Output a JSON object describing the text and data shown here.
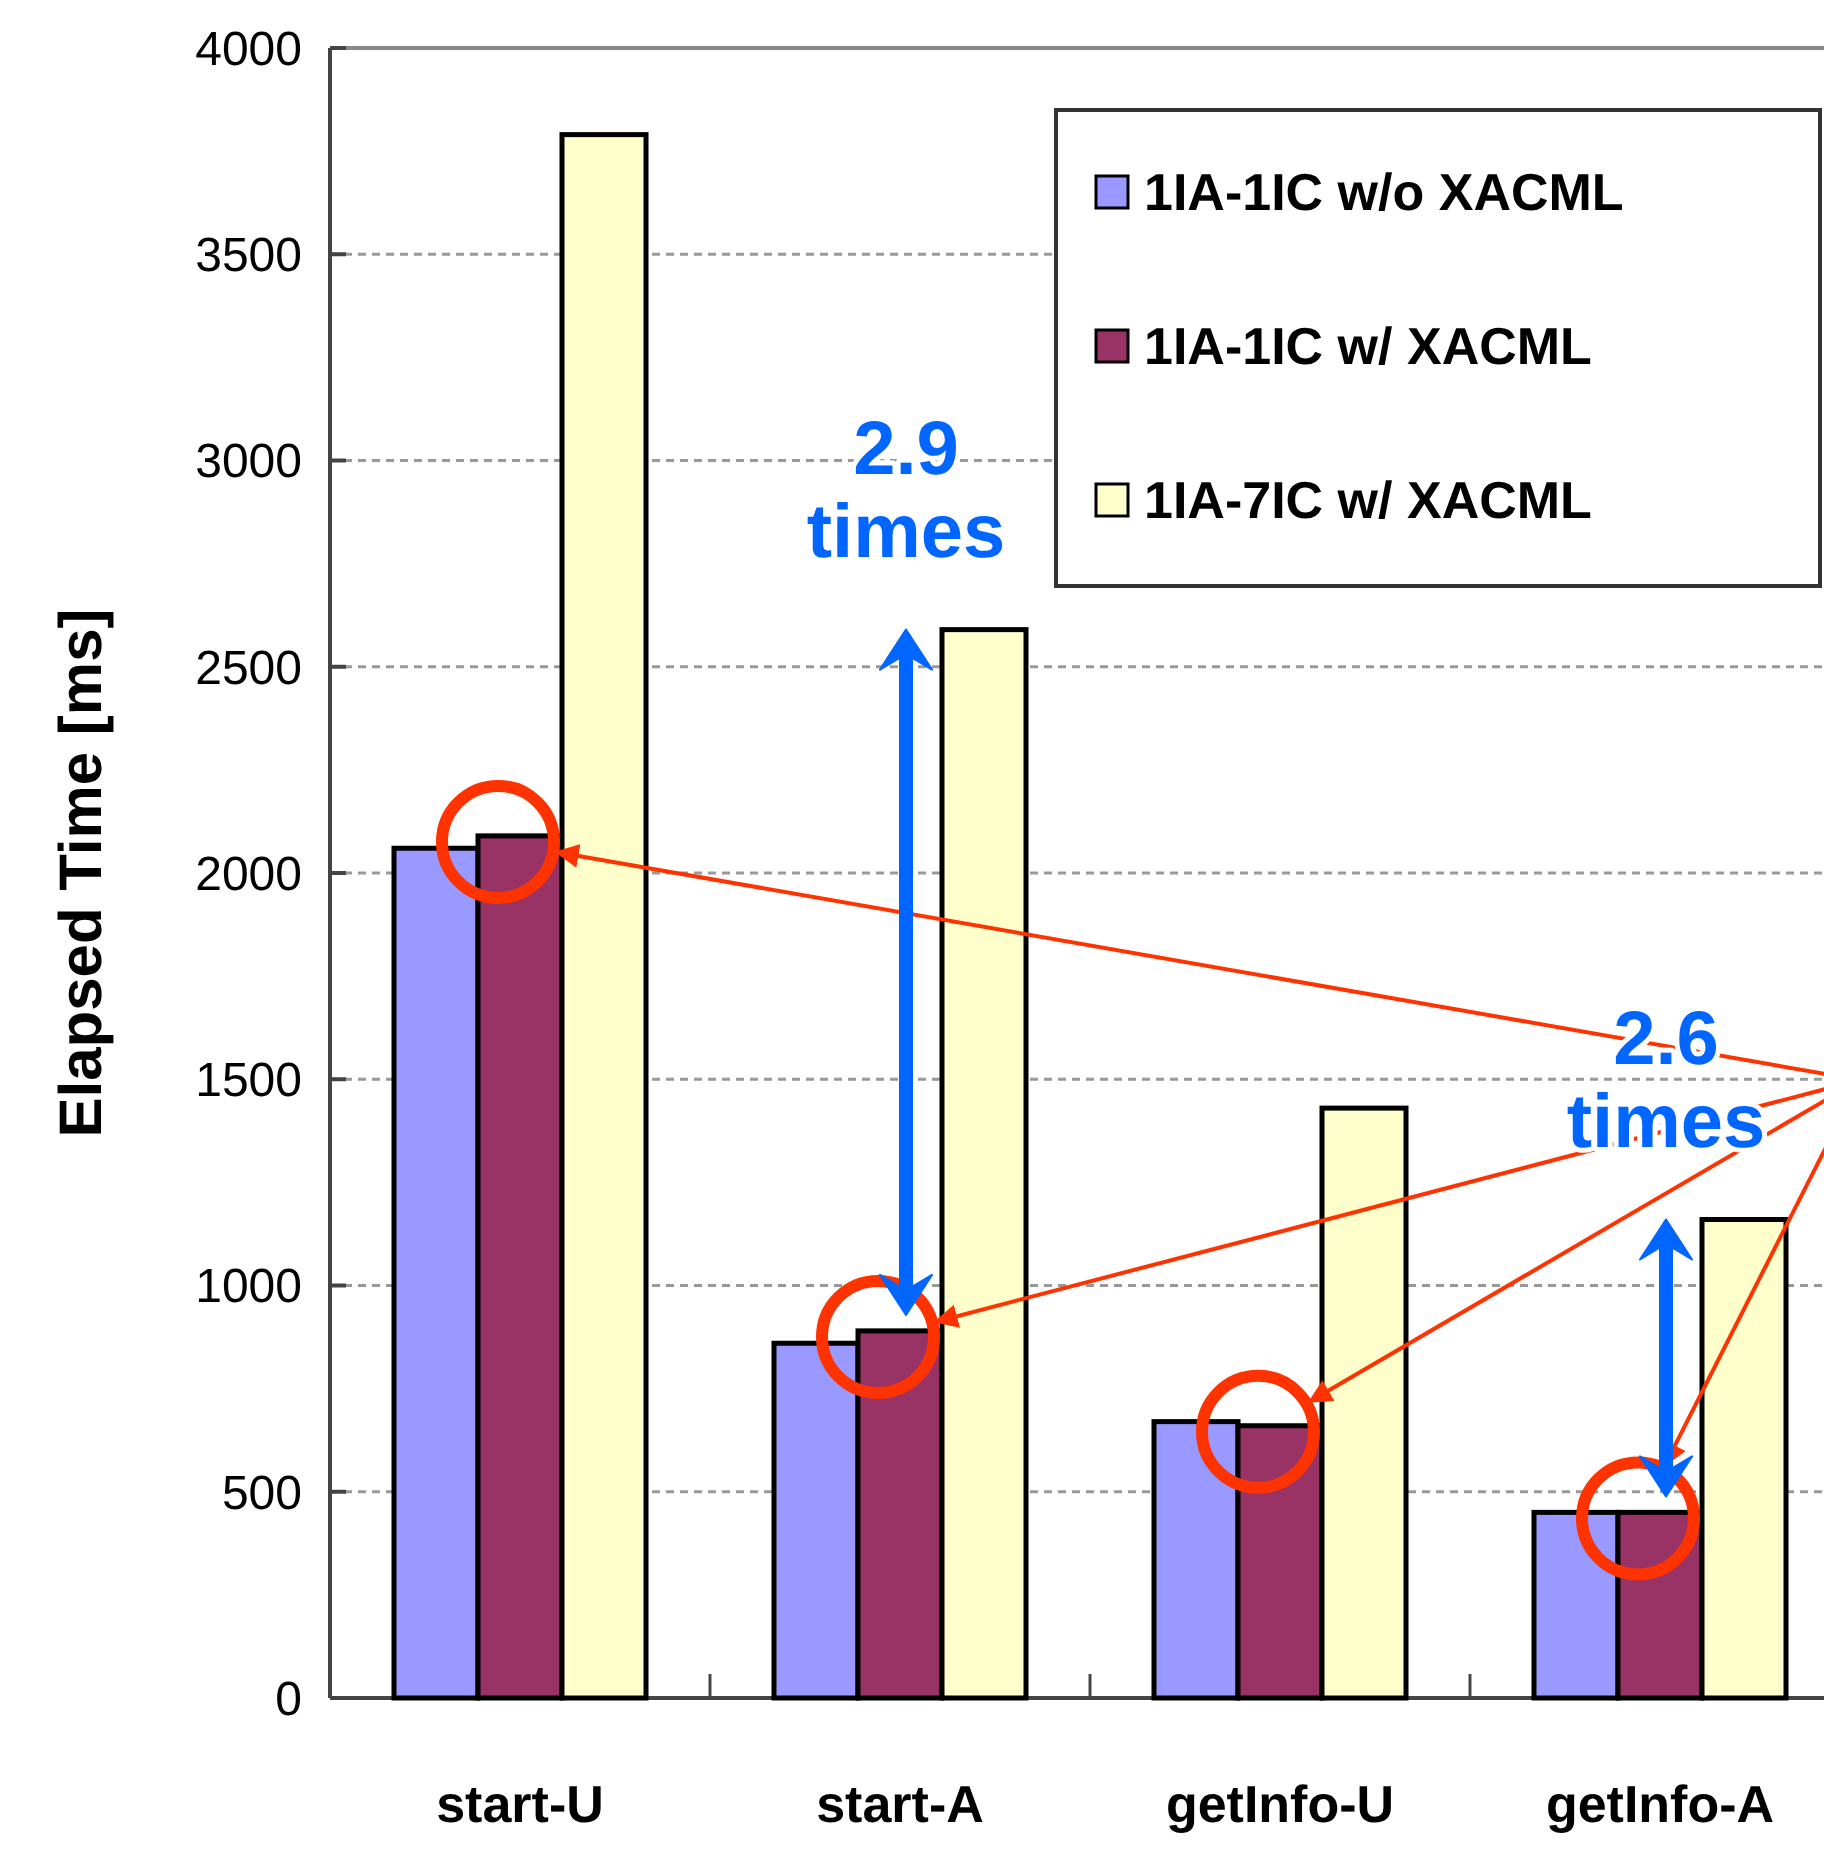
{
  "chart_data": {
    "type": "bar",
    "ylabel": "Elapsed Time [ms]",
    "categories": [
      "start-U",
      "start-A",
      "getInfo-U",
      "getInfo-A"
    ],
    "series": [
      {
        "name": "1IA-1IC w/o XACML",
        "color": "#9999ff",
        "values": [
          2060,
          860,
          670,
          450
        ]
      },
      {
        "name": "1IA-1IC w/ XACML",
        "color": "#993366",
        "values": [
          2090,
          890,
          660,
          450
        ]
      },
      {
        "name": "1IA-7IC w/ XACML",
        "color": "#ffffcc",
        "values": [
          3790,
          2590,
          1430,
          1160
        ]
      }
    ],
    "ylim": [
      0,
      4000
    ],
    "yticks": [
      0,
      500,
      1000,
      1500,
      2000,
      2500,
      3000,
      3500,
      4000
    ],
    "grid": "y",
    "legend": "top right",
    "annotations": [
      "2.9 times",
      "2.6 times"
    ]
  }
}
